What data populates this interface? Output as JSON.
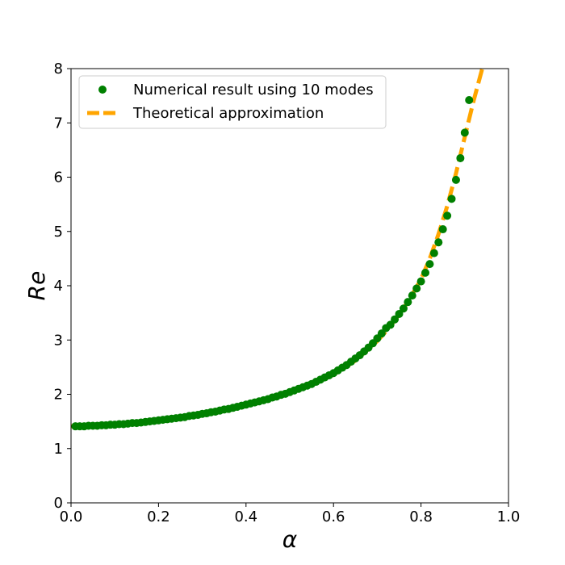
{
  "chart_data": {
    "type": "scatter",
    "xlabel": "α",
    "ylabel": "Re",
    "xlim": [
      0.0,
      1.0
    ],
    "ylim": [
      0,
      8
    ],
    "grid": false,
    "legend_position": "top-left",
    "x_ticks": [
      "0.0",
      "0.2",
      "0.4",
      "0.6",
      "0.8",
      "1.0"
    ],
    "y_ticks": [
      "0",
      "1",
      "2",
      "3",
      "4",
      "5",
      "6",
      "7",
      "8"
    ],
    "series": [
      {
        "name": "Numerical result using 10 modes",
        "kind": "scatter",
        "color": "#008000",
        "points": [
          [
            0.01,
            1.41
          ],
          [
            0.02,
            1.41
          ],
          [
            0.03,
            1.41
          ],
          [
            0.04,
            1.42
          ],
          [
            0.05,
            1.42
          ],
          [
            0.06,
            1.42
          ],
          [
            0.07,
            1.43
          ],
          [
            0.08,
            1.43
          ],
          [
            0.09,
            1.44
          ],
          [
            0.1,
            1.44
          ],
          [
            0.11,
            1.45
          ],
          [
            0.12,
            1.45
          ],
          [
            0.13,
            1.46
          ],
          [
            0.14,
            1.47
          ],
          [
            0.15,
            1.47
          ],
          [
            0.16,
            1.48
          ],
          [
            0.17,
            1.49
          ],
          [
            0.18,
            1.5
          ],
          [
            0.19,
            1.51
          ],
          [
            0.2,
            1.52
          ],
          [
            0.21,
            1.53
          ],
          [
            0.22,
            1.54
          ],
          [
            0.23,
            1.55
          ],
          [
            0.24,
            1.56
          ],
          [
            0.25,
            1.57
          ],
          [
            0.26,
            1.58
          ],
          [
            0.27,
            1.6
          ],
          [
            0.28,
            1.61
          ],
          [
            0.29,
            1.62
          ],
          [
            0.3,
            1.64
          ],
          [
            0.31,
            1.65
          ],
          [
            0.32,
            1.67
          ],
          [
            0.33,
            1.68
          ],
          [
            0.34,
            1.7
          ],
          [
            0.35,
            1.72
          ],
          [
            0.36,
            1.73
          ],
          [
            0.37,
            1.75
          ],
          [
            0.38,
            1.77
          ],
          [
            0.39,
            1.79
          ],
          [
            0.4,
            1.81
          ],
          [
            0.41,
            1.83
          ],
          [
            0.42,
            1.85
          ],
          [
            0.43,
            1.87
          ],
          [
            0.44,
            1.89
          ],
          [
            0.45,
            1.91
          ],
          [
            0.46,
            1.94
          ],
          [
            0.47,
            1.96
          ],
          [
            0.48,
            1.99
          ],
          [
            0.49,
            2.01
          ],
          [
            0.5,
            2.04
          ],
          [
            0.51,
            2.07
          ],
          [
            0.52,
            2.1
          ],
          [
            0.53,
            2.13
          ],
          [
            0.54,
            2.16
          ],
          [
            0.55,
            2.19
          ],
          [
            0.56,
            2.23
          ],
          [
            0.57,
            2.27
          ],
          [
            0.58,
            2.31
          ],
          [
            0.59,
            2.35
          ],
          [
            0.6,
            2.39
          ],
          [
            0.61,
            2.44
          ],
          [
            0.62,
            2.49
          ],
          [
            0.63,
            2.54
          ],
          [
            0.64,
            2.6
          ],
          [
            0.65,
            2.66
          ],
          [
            0.66,
            2.72
          ],
          [
            0.67,
            2.79
          ],
          [
            0.68,
            2.86
          ],
          [
            0.69,
            2.94
          ],
          [
            0.7,
            3.03
          ],
          [
            0.71,
            3.12
          ],
          [
            0.72,
            3.22
          ],
          [
            0.73,
            3.28
          ],
          [
            0.74,
            3.38
          ],
          [
            0.75,
            3.48
          ],
          [
            0.76,
            3.58
          ],
          [
            0.77,
            3.7
          ],
          [
            0.78,
            3.82
          ],
          [
            0.79,
            3.95
          ],
          [
            0.8,
            4.08
          ],
          [
            0.81,
            4.24
          ],
          [
            0.82,
            4.4
          ],
          [
            0.83,
            4.6
          ],
          [
            0.84,
            4.8
          ],
          [
            0.85,
            5.04
          ],
          [
            0.86,
            5.29
          ],
          [
            0.87,
            5.6
          ],
          [
            0.88,
            5.95
          ],
          [
            0.89,
            6.35
          ],
          [
            0.9,
            6.82
          ],
          [
            0.91,
            7.42
          ]
        ]
      },
      {
        "name": "Theoretical approximation",
        "kind": "line",
        "color": "#FFA500",
        "dash": "dashed",
        "points": [
          [
            0.0,
            1.41
          ],
          [
            0.05,
            1.42
          ],
          [
            0.1,
            1.43
          ],
          [
            0.15,
            1.46
          ],
          [
            0.2,
            1.5
          ],
          [
            0.25,
            1.55
          ],
          [
            0.3,
            1.62
          ],
          [
            0.35,
            1.7
          ],
          [
            0.4,
            1.8
          ],
          [
            0.45,
            1.9
          ],
          [
            0.5,
            2.02
          ],
          [
            0.55,
            2.17
          ],
          [
            0.6,
            2.36
          ],
          [
            0.65,
            2.62
          ],
          [
            0.7,
            2.98
          ],
          [
            0.72,
            3.16
          ],
          [
            0.74,
            3.36
          ],
          [
            0.76,
            3.58
          ],
          [
            0.78,
            3.84
          ],
          [
            0.8,
            4.12
          ],
          [
            0.82,
            4.5
          ],
          [
            0.84,
            4.95
          ],
          [
            0.86,
            5.47
          ],
          [
            0.88,
            6.07
          ],
          [
            0.9,
            6.74
          ],
          [
            0.92,
            7.4
          ],
          [
            0.94,
            8.0
          ]
        ]
      }
    ]
  }
}
